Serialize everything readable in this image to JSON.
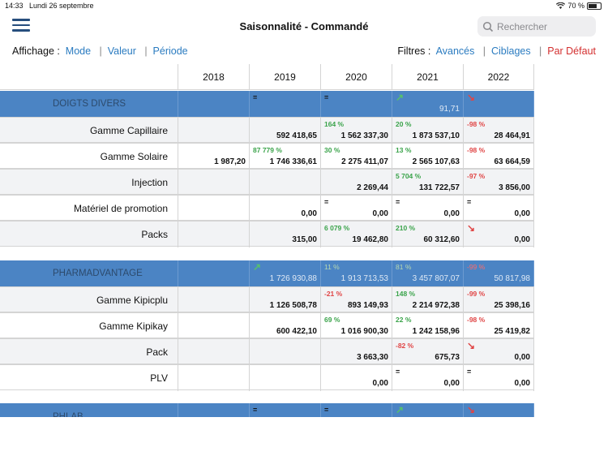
{
  "status": {
    "time": "14:33",
    "date": "Lundi 26 septembre",
    "battery": "70 %",
    "battery_level": 0.7
  },
  "nav": {
    "title": "Saisonnalité - Commandé",
    "search_placeholder": "Rechercher"
  },
  "toolbar": {
    "display_label": "Affichage :",
    "mode": "Mode",
    "valeur": "Valeur",
    "periode": "Période",
    "sep": "|",
    "filters_label": "Filtres :",
    "avances": "Avancés",
    "ciblages": "Ciblages",
    "par_defaut": "Par Défaut"
  },
  "columns": [
    "2018",
    "2019",
    "2020",
    "2021",
    "2022"
  ],
  "colors": {
    "band": "#4b84c4",
    "green": "#3aa34a",
    "red": "#e04545",
    "link": "#2a7bc0"
  },
  "groups": [
    {
      "name": "DOIGTS DIVERS",
      "summary": [
        {
          "pct": "",
          "val": ""
        },
        {
          "pct": "=",
          "val": ""
        },
        {
          "pct": "=",
          "val": ""
        },
        {
          "arrow": "↗",
          "val": "91,71"
        },
        {
          "arrow": "↘",
          "val": ""
        }
      ],
      "rows": [
        {
          "label": "Gamme Capillaire",
          "cells": [
            {
              "pct": "",
              "val": ""
            },
            {
              "pct": "",
              "val": "592 418,65"
            },
            {
              "pct": "164 %",
              "val": "1 562 337,30"
            },
            {
              "pct": "20 %",
              "val": "1 873 537,10"
            },
            {
              "pct": "-98 %",
              "val": "28 464,91"
            }
          ]
        },
        {
          "label": "Gamme Solaire",
          "cells": [
            {
              "pct": "",
              "val": "1 987,20"
            },
            {
              "pct": "87 779 %",
              "val": "1 746 336,61"
            },
            {
              "pct": "30 %",
              "val": "2 275 411,07"
            },
            {
              "pct": "13 %",
              "val": "2 565 107,63"
            },
            {
              "pct": "-98 %",
              "val": "63 664,59"
            }
          ]
        },
        {
          "label": "Injection",
          "cells": [
            {
              "pct": "",
              "val": ""
            },
            {
              "pct": "",
              "val": ""
            },
            {
              "pct": "",
              "val": "2 269,44"
            },
            {
              "pct": "5 704 %",
              "val": "131 722,57"
            },
            {
              "pct": "-97 %",
              "val": "3 856,00"
            }
          ]
        },
        {
          "label": "Matériel de promotion",
          "cells": [
            {
              "pct": "",
              "val": ""
            },
            {
              "pct": "",
              "val": "0,00"
            },
            {
              "pct": "=",
              "val": "0,00"
            },
            {
              "pct": "=",
              "val": "0,00"
            },
            {
              "pct": "=",
              "val": "0,00"
            }
          ]
        },
        {
          "label": "Packs",
          "cells": [
            {
              "pct": "",
              "val": ""
            },
            {
              "pct": "",
              "val": "315,00"
            },
            {
              "pct": "6 079 %",
              "val": "19 462,80"
            },
            {
              "pct": "210 %",
              "val": "60 312,60"
            },
            {
              "arrow": "↘",
              "val": "0,00"
            }
          ]
        }
      ]
    },
    {
      "name": "PHARMADVANTAGE",
      "summary": [
        {
          "pct": "",
          "val": ""
        },
        {
          "arrow": "↗",
          "val": "1 726 930,88"
        },
        {
          "pct": "11 %",
          "val": "1 913 713,53"
        },
        {
          "pct": "81 %",
          "val": "3 457 807,07"
        },
        {
          "pct": "-99 %",
          "val": "50 817,98"
        }
      ],
      "rows": [
        {
          "label": "Gamme Kipicplu",
          "cells": [
            {
              "pct": "",
              "val": ""
            },
            {
              "pct": "",
              "val": "1 126 508,78"
            },
            {
              "pct": "-21 %",
              "val": "893 149,93"
            },
            {
              "pct": "148 %",
              "val": "2 214 972,38"
            },
            {
              "pct": "-99 %",
              "val": "25 398,16"
            }
          ]
        },
        {
          "label": "Gamme Kipikay",
          "cells": [
            {
              "pct": "",
              "val": ""
            },
            {
              "pct": "",
              "val": "600 422,10"
            },
            {
              "pct": "69 %",
              "val": "1 016 900,30"
            },
            {
              "pct": "22 %",
              "val": "1 242 158,96"
            },
            {
              "pct": "-98 %",
              "val": "25 419,82"
            }
          ]
        },
        {
          "label": "Pack",
          "cells": [
            {
              "pct": "",
              "val": ""
            },
            {
              "pct": "",
              "val": ""
            },
            {
              "pct": "",
              "val": "3 663,30"
            },
            {
              "pct": "-82 %",
              "val": "675,73"
            },
            {
              "arrow": "↘",
              "val": "0,00"
            }
          ]
        },
        {
          "label": "PLV",
          "cells": [
            {
              "pct": "",
              "val": ""
            },
            {
              "pct": "",
              "val": ""
            },
            {
              "pct": "",
              "val": "0,00"
            },
            {
              "pct": "=",
              "val": "0,00"
            },
            {
              "pct": "=",
              "val": "0,00"
            }
          ]
        }
      ]
    },
    {
      "name": "PHLAB",
      "summary": [
        {
          "pct": "",
          "val": ""
        },
        {
          "pct": "=",
          "val": ""
        },
        {
          "pct": "=",
          "val": ""
        },
        {
          "arrow": "↗",
          "val": ""
        },
        {
          "arrow": "↘",
          "val": ""
        }
      ],
      "rows": []
    }
  ]
}
